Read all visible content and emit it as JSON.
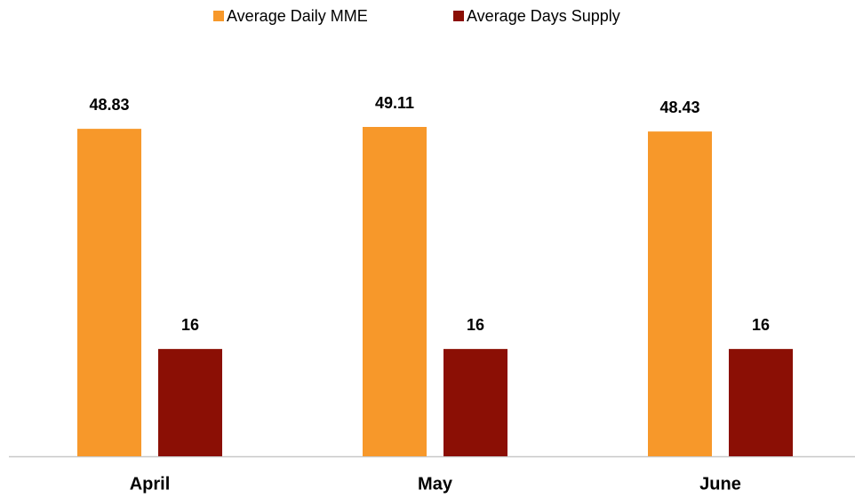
{
  "chart_data": {
    "type": "bar",
    "categories": [
      "April",
      "May",
      "June"
    ],
    "series": [
      {
        "name": "Average Daily MME",
        "color": "#f7982a",
        "values": [
          48.83,
          49.11,
          48.43
        ]
      },
      {
        "name": "Average Days Supply",
        "color": "#8b0f05",
        "values": [
          16,
          16,
          16
        ]
      }
    ],
    "legend": "top"
  }
}
